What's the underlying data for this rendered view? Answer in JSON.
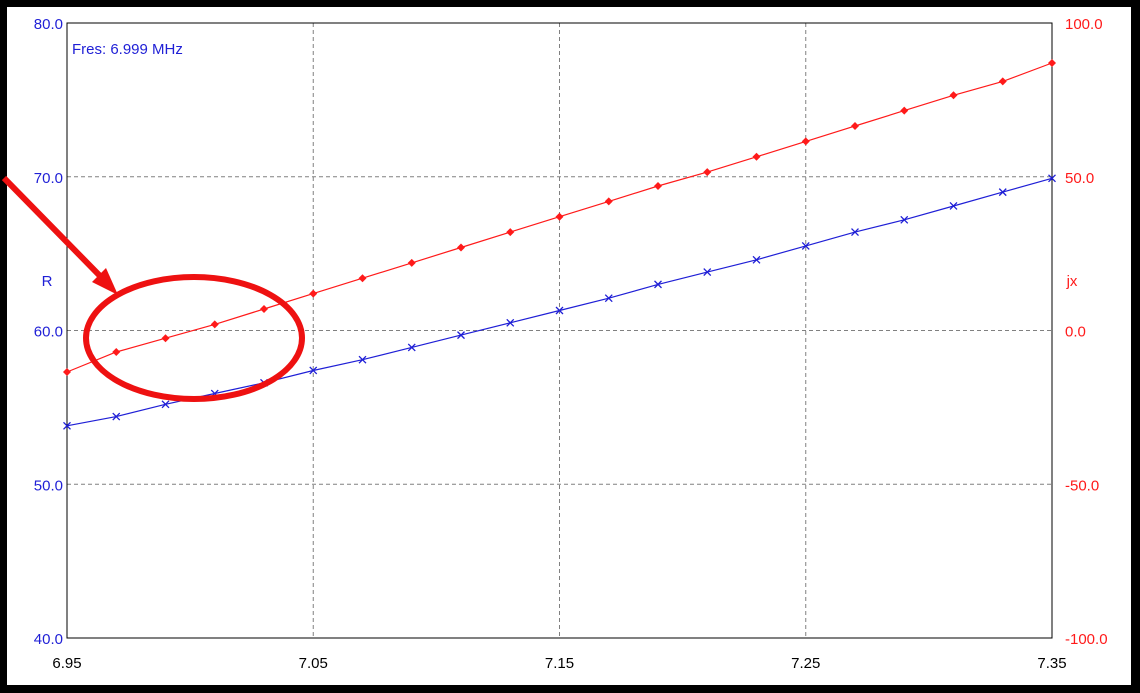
{
  "colors": {
    "frame": "#000000",
    "background": "#ffffff",
    "grid": "#808080",
    "r_series": "#1f1fd6",
    "jx_series": "#ff1a1a",
    "annotation": "#ee1111"
  },
  "chart_data": {
    "type": "line",
    "annotation_text": "Fres: 6.999 MHz",
    "xlim": [
      6.95,
      7.35
    ],
    "x_ticks": [
      "6.95",
      "7.05",
      "7.15",
      "7.25",
      "7.35"
    ],
    "y_left": {
      "label": "R",
      "ylim": [
        40,
        80
      ],
      "ticks": [
        "40.0",
        "50.0",
        "60.0",
        "70.0",
        "80.0"
      ]
    },
    "y_right": {
      "label": "jx",
      "ylim": [
        -100,
        100
      ],
      "ticks": [
        "-100.0",
        "-50.0",
        "0.0",
        "50.0",
        "100.0"
      ]
    },
    "grid": true,
    "series": [
      {
        "axis": "left",
        "marker": "x",
        "x": [
          6.95,
          6.97,
          6.99,
          7.01,
          7.03,
          7.05,
          7.07,
          7.09,
          7.11,
          7.13,
          7.15,
          7.17,
          7.19,
          7.21,
          7.23,
          7.25,
          7.27,
          7.29,
          7.31,
          7.33,
          7.35
        ],
        "values": [
          53.8,
          54.4,
          55.2,
          55.9,
          56.6,
          57.4,
          58.1,
          58.9,
          59.7,
          60.5,
          61.3,
          62.1,
          63.0,
          63.8,
          64.6,
          65.5,
          66.4,
          67.2,
          68.1,
          69.0,
          69.9
        ]
      },
      {
        "axis": "right",
        "marker": "diamond",
        "x": [
          6.95,
          6.97,
          6.99,
          7.01,
          7.03,
          7.05,
          7.07,
          7.09,
          7.11,
          7.13,
          7.15,
          7.17,
          7.19,
          7.21,
          7.23,
          7.25,
          7.27,
          7.29,
          7.31,
          7.33,
          7.35
        ],
        "values": [
          -13.5,
          -7.0,
          -2.5,
          2.0,
          7.0,
          12.0,
          17.0,
          22.0,
          27.0,
          32.0,
          37.0,
          42.0,
          47.0,
          51.5,
          56.5,
          61.5,
          66.5,
          71.5,
          76.5,
          81.0,
          87.0
        ]
      }
    ]
  }
}
